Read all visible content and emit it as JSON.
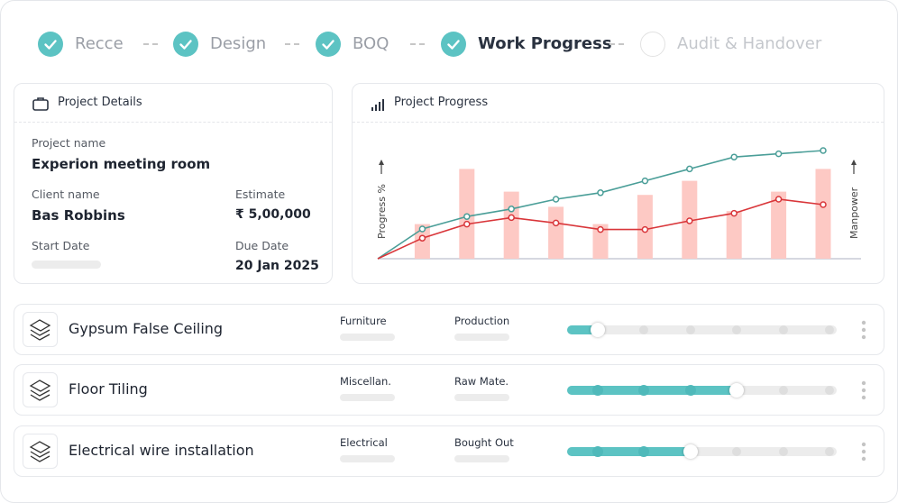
{
  "steps": [
    {
      "label": "Recce",
      "status": "done"
    },
    {
      "label": "Design",
      "status": "done"
    },
    {
      "label": "BOQ",
      "status": "done"
    },
    {
      "label": "Work Progress",
      "status": "current"
    },
    {
      "label": "Audit & Handover",
      "status": "pending"
    }
  ],
  "project_details": {
    "title": "Project Details",
    "fields": [
      {
        "label": "Project name",
        "value": "Experion meeting room"
      },
      {
        "label": "Client name",
        "value": "Bas Robbins"
      },
      {
        "label": "Estimate",
        "value": "₹ 5,00,000"
      },
      {
        "label": "Start Date",
        "value": null
      },
      {
        "label": "Due Date",
        "value": "20 Jan 2025"
      }
    ]
  },
  "project_progress": {
    "title": "Project Progress",
    "chart_data": {
      "type": "bar-line",
      "y_label": "Progress %",
      "y2_label": "Manpower",
      "x": [
        0,
        1,
        2,
        3,
        4,
        5,
        6,
        7,
        8,
        9,
        10
      ],
      "xlim": [
        0,
        10
      ],
      "ylim": [
        0,
        100
      ],
      "y2lim": [
        0,
        100
      ],
      "series": [
        {
          "type": "bar",
          "axis": "y2",
          "color": "#fdc9c4",
          "values": [
            null,
            32,
            83,
            62,
            48,
            32,
            59,
            72,
            44,
            62,
            83
          ]
        },
        {
          "type": "line",
          "color": "#4a9e98",
          "values": [
            0,
            27.5,
            39,
            46,
            55,
            61,
            72,
            83,
            94,
            97,
            100
          ]
        },
        {
          "type": "line",
          "color": "#d9363a",
          "values": [
            0,
            19,
            32,
            38,
            33,
            27,
            27,
            35,
            42,
            55,
            50
          ]
        }
      ]
    }
  },
  "tasks": [
    {
      "name": "Gypsum False Ceiling",
      "category": "Furniture",
      "source": "Production",
      "stage": 0,
      "stages": 6
    },
    {
      "name": "Floor Tiling",
      "category": "Miscellan.",
      "source": "Raw Mate.",
      "stage": 3,
      "stages": 6
    },
    {
      "name": "Electrical wire installation",
      "category": "Electrical",
      "source": "Bought Out",
      "stage": 2,
      "stages": 6
    }
  ]
}
